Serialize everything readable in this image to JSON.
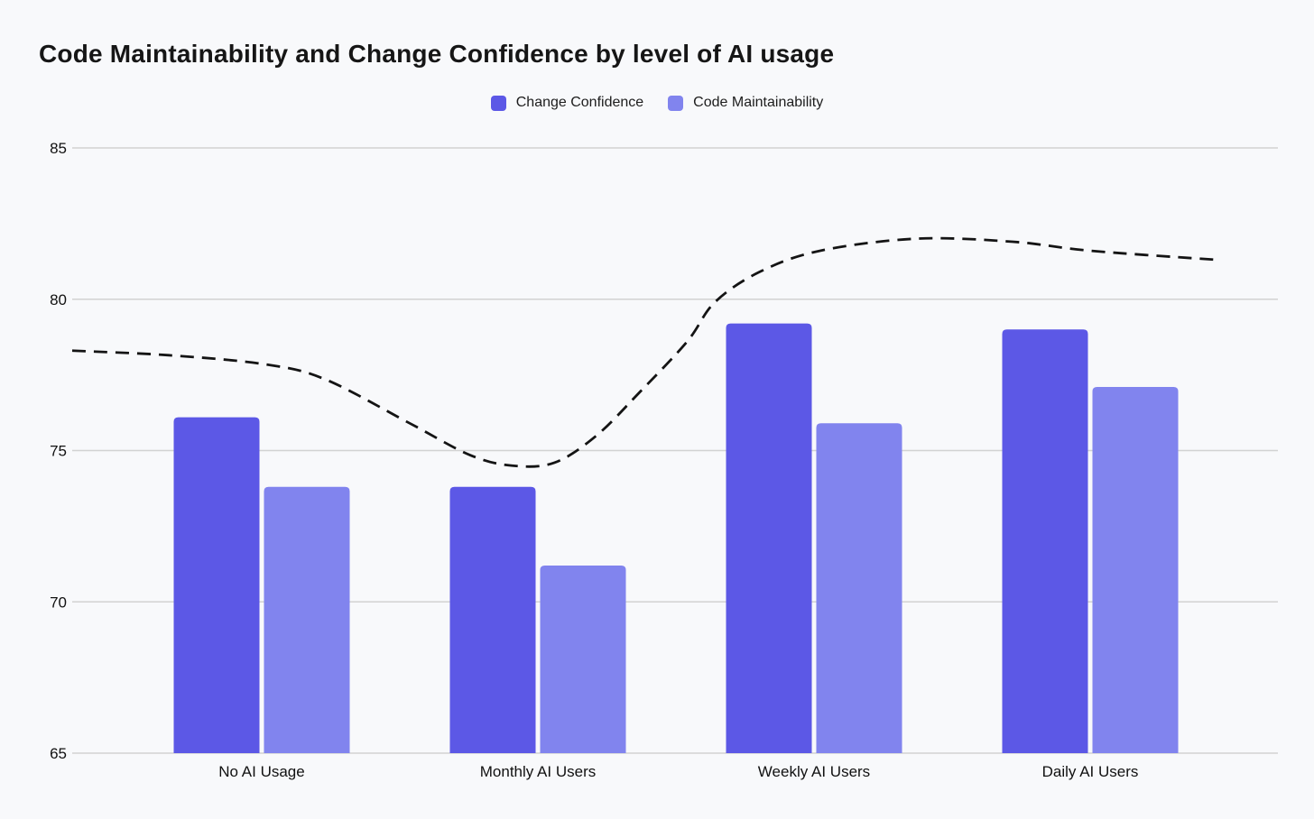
{
  "chart": {
    "background": "#f8f9fb"
  },
  "chart_data": {
    "type": "bar",
    "title": "Code Maintainability and Change Confidence by level of AI usage",
    "categories": [
      "No AI Usage",
      "Monthly AI Users",
      "Weekly AI Users",
      "Daily AI Users"
    ],
    "series": [
      {
        "name": "Change Confidence",
        "color": "#5c58e6",
        "values": [
          76.1,
          73.8,
          79.2,
          79.0
        ]
      },
      {
        "name": "Code Maintainability",
        "color": "#8184ee",
        "values": [
          73.8,
          71.2,
          75.9,
          77.1
        ]
      }
    ],
    "trend_line": {
      "style": "dashed",
      "color": "#141414",
      "points": [
        [
          0.0,
          78.3
        ],
        [
          0.08,
          78.15
        ],
        [
          0.16,
          77.85
        ],
        [
          0.21,
          77.35
        ],
        [
          0.28,
          75.9
        ],
        [
          0.33,
          74.85
        ],
        [
          0.365,
          74.5
        ],
        [
          0.4,
          74.6
        ],
        [
          0.435,
          75.5
        ],
        [
          0.47,
          76.9
        ],
        [
          0.51,
          78.6
        ],
        [
          0.533,
          79.9
        ],
        [
          0.57,
          80.9
        ],
        [
          0.62,
          81.6
        ],
        [
          0.7,
          82.0
        ],
        [
          0.78,
          81.9
        ],
        [
          0.845,
          81.6
        ],
        [
          0.95,
          81.3
        ]
      ]
    },
    "ylim": [
      65,
      85
    ],
    "yticks": [
      65,
      70,
      75,
      80,
      85
    ],
    "grid": true,
    "gridline_color": "#d2d2d2",
    "axis_label_color": "#111111",
    "legend_position": "top"
  }
}
